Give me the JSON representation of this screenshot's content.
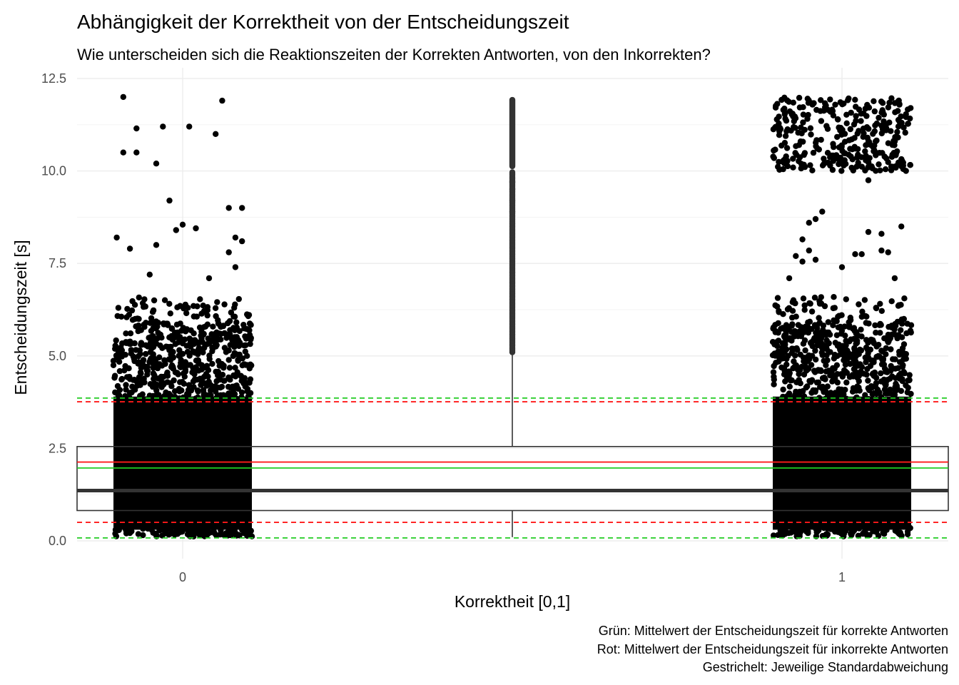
{
  "chart_data": {
    "type": "scatter",
    "title": "Abhängigkeit der Korrektheit von der Entscheidungszeit",
    "subtitle": "Wie unterscheiden sich die Reaktionszeiten der Korrekten Antworten, von den Inkorrekten?",
    "xlabel": "Korrektheit [0,1]",
    "ylabel": "Entscheidungszeit [s]",
    "x_categories": [
      "0",
      "1"
    ],
    "ylim": [
      -0.35,
      12.5
    ],
    "y_ticks": [
      "0.0",
      "2.5",
      "5.0",
      "7.5",
      "10.0",
      "12.5"
    ],
    "y_tick_values": [
      0,
      2.5,
      5,
      7.5,
      10,
      12.5
    ],
    "grid": true,
    "boxplot": {
      "x": 0.5,
      "q1": 0.82,
      "median": 1.36,
      "q3": 2.55,
      "whisker_low": 0.1,
      "whisker_high": 5.1,
      "outlier_range": [
        5.1,
        12.0
      ]
    },
    "mean_lines": [
      {
        "name": "Grün",
        "color": "#22cc22",
        "mean": 1.97,
        "sd_low": 0.08,
        "sd_high": 3.86
      },
      {
        "name": "Rot",
        "color": "#ff1a1a",
        "mean": 2.13,
        "sd_low": 0.5,
        "sd_high": 3.76
      }
    ],
    "scatter_groups": [
      {
        "category": "0",
        "outliers": [
          [
            -0.09,
            12.0
          ],
          [
            -0.07,
            11.15
          ],
          [
            -0.03,
            11.2
          ],
          [
            0.01,
            11.2
          ],
          [
            0.06,
            11.9
          ],
          [
            0.05,
            11.0
          ],
          [
            -0.09,
            10.5
          ],
          [
            -0.07,
            10.5
          ],
          [
            -0.04,
            10.2
          ],
          [
            -0.02,
            9.2
          ],
          [
            0.07,
            9.0
          ],
          [
            0.09,
            9.0
          ],
          [
            -0.1,
            8.2
          ],
          [
            0.0,
            8.55
          ],
          [
            -0.01,
            8.4
          ],
          [
            0.02,
            8.45
          ],
          [
            0.08,
            8.2
          ],
          [
            0.09,
            8.1
          ],
          [
            -0.04,
            8.0
          ],
          [
            -0.08,
            7.9
          ],
          [
            0.07,
            7.8
          ],
          [
            0.04,
            7.1
          ],
          [
            -0.05,
            7.2
          ],
          [
            0.08,
            7.4
          ]
        ]
      },
      {
        "category": "1",
        "outliers": [
          [
            -0.03,
            8.9
          ],
          [
            -0.04,
            8.7
          ],
          [
            -0.05,
            8.6
          ],
          [
            0.04,
            8.35
          ],
          [
            0.09,
            8.5
          ],
          [
            0.06,
            8.3
          ],
          [
            -0.06,
            8.15
          ],
          [
            -0.07,
            7.7
          ],
          [
            -0.05,
            7.85
          ],
          [
            0.02,
            7.75
          ],
          [
            0.03,
            7.75
          ],
          [
            0.06,
            7.85
          ],
          [
            0.07,
            7.8
          ],
          [
            0.04,
            9.75
          ],
          [
            -0.08,
            7.1
          ],
          [
            -0.06,
            7.55
          ],
          [
            -0.04,
            7.6
          ],
          [
            0.0,
            7.4
          ],
          [
            0.08,
            7.1
          ]
        ]
      }
    ]
  },
  "caption": {
    "line1": "Grün: Mittelwert der Entscheidungszeit für korrekte Antworten",
    "line2": "Rot: Mittelwert der Entscheidungszeit für inkorrekte Antworten",
    "line3": "Gestrichelt: Jeweilige Standardabweichung"
  }
}
